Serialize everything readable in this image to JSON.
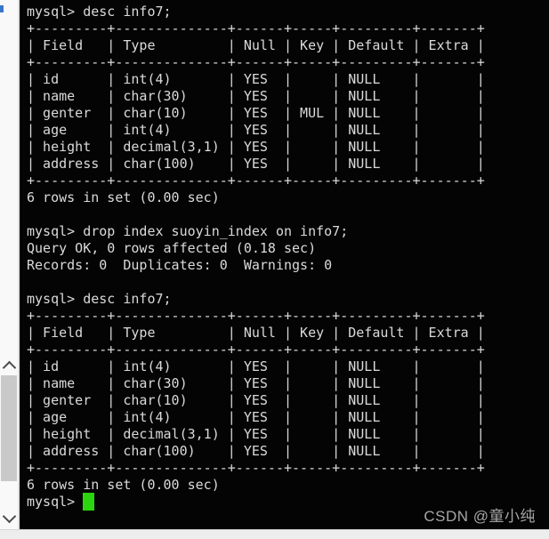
{
  "terminal": {
    "prompt": "mysql> ",
    "blocks": [
      {
        "text": "mysql> desc info7;"
      },
      {
        "table": {
          "headers": [
            "Field",
            "Type",
            "Null",
            "Key",
            "Default",
            "Extra"
          ],
          "rows": [
            [
              "id",
              "int(4)",
              "YES",
              "",
              "NULL",
              ""
            ],
            [
              "name",
              "char(30)",
              "YES",
              "",
              "NULL",
              ""
            ],
            [
              "genter",
              "char(10)",
              "YES",
              "MUL",
              "NULL",
              ""
            ],
            [
              "age",
              "int(4)",
              "YES",
              "",
              "NULL",
              ""
            ],
            [
              "height",
              "decimal(3,1)",
              "YES",
              "",
              "NULL",
              ""
            ],
            [
              "address",
              "char(100)",
              "YES",
              "",
              "NULL",
              ""
            ]
          ]
        }
      },
      {
        "text": "6 rows in set (0.00 sec)"
      },
      {
        "text": ""
      },
      {
        "text": "mysql> drop index suoyin_index on info7;"
      },
      {
        "text": "Query OK, 0 rows affected (0.18 sec)"
      },
      {
        "text": "Records: 0  Duplicates: 0  Warnings: 0"
      },
      {
        "text": ""
      },
      {
        "text": "mysql> desc info7;"
      },
      {
        "table": {
          "headers": [
            "Field",
            "Type",
            "Null",
            "Key",
            "Default",
            "Extra"
          ],
          "rows": [
            [
              "id",
              "int(4)",
              "YES",
              "",
              "NULL",
              ""
            ],
            [
              "name",
              "char(30)",
              "YES",
              "",
              "NULL",
              ""
            ],
            [
              "genter",
              "char(10)",
              "YES",
              "",
              "NULL",
              ""
            ],
            [
              "age",
              "int(4)",
              "YES",
              "",
              "NULL",
              ""
            ],
            [
              "height",
              "decimal(3,1)",
              "YES",
              "",
              "NULL",
              ""
            ],
            [
              "address",
              "char(100)",
              "YES",
              "",
              "NULL",
              ""
            ]
          ]
        }
      },
      {
        "text": "6 rows in set (0.00 sec)"
      },
      {
        "text": ""
      }
    ]
  },
  "scrollbar": {
    "up_icon": "chevron-up",
    "down_icon": "chevron-down"
  },
  "watermark": {
    "text": "CSDN @童小纯"
  },
  "colors": {
    "terminal_background": "#040404",
    "terminal_text": "#dadada",
    "cursor_green": "#2bd60e",
    "watermark_gray": "#a6a6a6",
    "scrollbar_thumb": "#c9c9c9",
    "rail_background": "#f9f9f9"
  }
}
